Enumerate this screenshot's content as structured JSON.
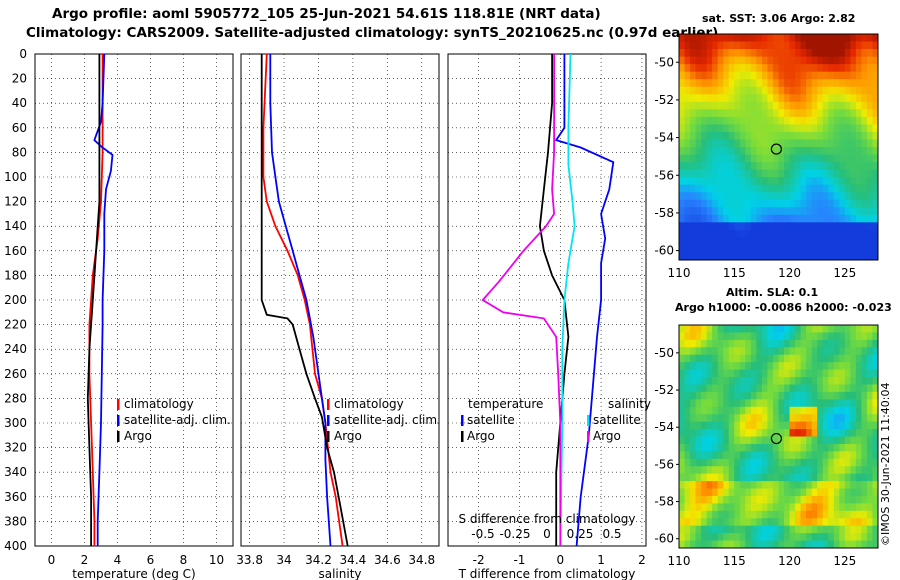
{
  "header": {
    "line1": "Argo profile: aoml 5905772_105 25-Jun-2021 54.61S 118.81E (NRT data)",
    "line2": "Climatology: CARS2009. Satellite-adjusted climatology: synTS_20210625.nc (0.97d earlier)"
  },
  "colors": {
    "climatology": "#ff0000",
    "satellite": "#0000ff",
    "argo": "#000000",
    "salinity_satellite": "#00e5ee",
    "salinity_argo": "#ee00ee"
  },
  "depth_axis": {
    "ylim": [
      0,
      400
    ],
    "ticks": [
      0,
      20,
      40,
      60,
      80,
      100,
      120,
      140,
      160,
      180,
      200,
      220,
      240,
      260,
      280,
      300,
      320,
      340,
      360,
      380,
      400
    ]
  },
  "chart_data": [
    {
      "type": "line",
      "name": "temperature",
      "xlabel": "temperature (deg C)",
      "xlim": [
        -1,
        11
      ],
      "xticks": [
        0,
        2,
        4,
        6,
        8,
        10
      ],
      "legend": [
        "climatology",
        "satellite-adj. clim.",
        "Argo"
      ],
      "series": [
        {
          "name": "climatology",
          "color": "#ff0000",
          "points": [
            [
              3.1,
              0
            ],
            [
              3.1,
              60
            ],
            [
              3.1,
              80
            ],
            [
              3.0,
              120
            ],
            [
              2.8,
              150
            ],
            [
              2.5,
              180
            ],
            [
              2.4,
              200
            ],
            [
              2.3,
              220
            ],
            [
              2.3,
              260
            ],
            [
              2.4,
              300
            ],
            [
              2.5,
              340
            ],
            [
              2.6,
              380
            ],
            [
              2.6,
              400
            ]
          ]
        },
        {
          "name": "satellite-adj. clim.",
          "color": "#0000ff",
          "points": [
            [
              3.2,
              0
            ],
            [
              3.1,
              40
            ],
            [
              3.0,
              55
            ],
            [
              2.6,
              70
            ],
            [
              3.0,
              75
            ],
            [
              3.7,
              82
            ],
            [
              3.6,
              95
            ],
            [
              3.3,
              110
            ],
            [
              3.2,
              130
            ],
            [
              3.2,
              160
            ],
            [
              3.1,
              200
            ],
            [
              3.1,
              220
            ],
            [
              3.0,
              300
            ],
            [
              2.9,
              340
            ],
            [
              2.8,
              380
            ],
            [
              2.8,
              400
            ]
          ]
        },
        {
          "name": "Argo",
          "color": "#000000",
          "points": [
            [
              2.9,
              0
            ],
            [
              2.9,
              40
            ],
            [
              2.9,
              80
            ],
            [
              2.9,
              120
            ],
            [
              2.7,
              160
            ],
            [
              2.5,
              200
            ],
            [
              2.3,
              240
            ],
            [
              2.2,
              280
            ],
            [
              2.3,
              320
            ],
            [
              2.4,
              360
            ],
            [
              2.4,
              400
            ]
          ]
        }
      ]
    },
    {
      "type": "line",
      "name": "salinity",
      "xlabel": "salinity",
      "xlim": [
        33.75,
        34.9
      ],
      "xticks": [
        33.8,
        34,
        34.2,
        34.4,
        34.6,
        34.8
      ],
      "legend": [
        "climatology",
        "satellite-adj. clim.",
        "Argo"
      ],
      "series": [
        {
          "name": "climatology",
          "color": "#ff0000",
          "points": [
            [
              33.9,
              0
            ],
            [
              33.88,
              60
            ],
            [
              33.88,
              100
            ],
            [
              33.9,
              120
            ],
            [
              33.95,
              140
            ],
            [
              34.02,
              160
            ],
            [
              34.08,
              180
            ],
            [
              34.12,
              200
            ],
            [
              34.15,
              220
            ],
            [
              34.18,
              260
            ],
            [
              34.22,
              280
            ],
            [
              34.24,
              300
            ],
            [
              34.27,
              340
            ],
            [
              34.3,
              360
            ],
            [
              34.34,
              400
            ]
          ]
        },
        {
          "name": "satellite-adj. clim.",
          "color": "#0000ff",
          "points": [
            [
              33.92,
              0
            ],
            [
              33.92,
              40
            ],
            [
              33.93,
              80
            ],
            [
              33.95,
              100
            ],
            [
              33.97,
              120
            ],
            [
              34.01,
              140
            ],
            [
              34.05,
              160
            ],
            [
              34.09,
              180
            ],
            [
              34.13,
              200
            ],
            [
              34.17,
              230
            ],
            [
              34.21,
              270
            ],
            [
              34.24,
              300
            ],
            [
              34.24,
              330
            ],
            [
              34.25,
              360
            ],
            [
              34.27,
              400
            ]
          ]
        },
        {
          "name": "Argo",
          "color": "#000000",
          "points": [
            [
              33.87,
              0
            ],
            [
              33.87,
              80
            ],
            [
              33.87,
              150
            ],
            [
              33.87,
              200
            ],
            [
              33.9,
              212
            ],
            [
              34.02,
              215
            ],
            [
              34.05,
              220
            ],
            [
              34.09,
              240
            ],
            [
              34.13,
              260
            ],
            [
              34.18,
              280
            ],
            [
              34.22,
              295
            ],
            [
              34.25,
              320
            ],
            [
              34.29,
              340
            ],
            [
              34.33,
              370
            ],
            [
              34.37,
              400
            ]
          ]
        }
      ]
    },
    {
      "type": "line",
      "name": "difference",
      "xlabel": "T difference from climatology",
      "xlim": [
        -2.75,
        2.1
      ],
      "xticks": [
        -2,
        -1,
        0,
        1,
        2
      ],
      "secondary_xlabel": "S difference from climatology",
      "secondary_xticks": [
        "-0.5",
        "-0.25",
        "0",
        "0.25",
        "0.5"
      ],
      "legend_temperature_title": "temperature",
      "legend_salinity_title": "salinity",
      "legend_temperature": [
        "satellite",
        "Argo"
      ],
      "legend_salinity": [
        "satellite",
        "Argo"
      ],
      "series": [
        {
          "name": "temperature satellite",
          "color": "#0000ff",
          "points": [
            [
              0.1,
              0
            ],
            [
              0.1,
              40
            ],
            [
              0.1,
              60
            ],
            [
              -0.1,
              70
            ],
            [
              0.5,
              76
            ],
            [
              1.3,
              88
            ],
            [
              1.2,
              110
            ],
            [
              1.0,
              130
            ],
            [
              1.1,
              150
            ],
            [
              1.0,
              170
            ],
            [
              1.0,
              200
            ],
            [
              0.9,
              230
            ],
            [
              0.8,
              270
            ],
            [
              0.7,
              310
            ],
            [
              0.5,
              360
            ],
            [
              0.4,
              400
            ]
          ]
        },
        {
          "name": "temperature Argo",
          "color": "#000000",
          "points": [
            [
              -0.2,
              0
            ],
            [
              -0.2,
              40
            ],
            [
              -0.3,
              80
            ],
            [
              -0.4,
              110
            ],
            [
              -0.5,
              140
            ],
            [
              -0.4,
              160
            ],
            [
              -0.2,
              180
            ],
            [
              0.1,
              200
            ],
            [
              0.2,
              230
            ],
            [
              0.1,
              260
            ],
            [
              0,
              300
            ],
            [
              -0.1,
              340
            ],
            [
              -0.1,
              400
            ]
          ]
        },
        {
          "name": "salinity satellite",
          "color": "#00e5ee",
          "points": [
            [
              0.25,
              0
            ],
            [
              0.2,
              60
            ],
            [
              0.2,
              90
            ],
            [
              0.3,
              120
            ],
            [
              0.35,
              140
            ],
            [
              0.2,
              170
            ],
            [
              0.1,
              200
            ],
            [
              0.05,
              240
            ],
            [
              0.05,
              300
            ],
            [
              0.02,
              360
            ],
            [
              0.0,
              400
            ]
          ]
        },
        {
          "name": "salinity Argo",
          "color": "#ee00ee",
          "points": [
            [
              -0.15,
              0
            ],
            [
              -0.15,
              40
            ],
            [
              -0.15,
              80
            ],
            [
              -0.2,
              110
            ],
            [
              -0.15,
              130
            ],
            [
              -0.35,
              140
            ],
            [
              -0.9,
              160
            ],
            [
              -1.5,
              185
            ],
            [
              -1.9,
              200
            ],
            [
              -1.4,
              210
            ],
            [
              -0.4,
              215
            ],
            [
              -0.1,
              230
            ],
            [
              -0.05,
              260
            ],
            [
              0,
              300
            ],
            [
              0,
              400
            ]
          ]
        }
      ]
    },
    {
      "type": "heatmap",
      "name": "sst-map",
      "title": "sat. SST: 3.06 Argo: 2.82",
      "xlim": [
        110,
        128
      ],
      "ylim": [
        -60.5,
        -48.5
      ],
      "xticks": [
        110,
        115,
        120,
        125
      ],
      "yticks": [
        -50,
        -52,
        -54,
        -56,
        -58,
        -60
      ],
      "profile_location": [
        118.81,
        -54.61
      ]
    },
    {
      "type": "heatmap",
      "name": "sla-map",
      "title_line1": "Altim. SLA: 0.1",
      "title_line2": "Argo h1000: -0.0086 h2000: -0.023",
      "xlim": [
        110,
        128
      ],
      "ylim": [
        -60.5,
        -48.5
      ],
      "xticks": [
        110,
        115,
        120,
        125
      ],
      "yticks": [
        -50,
        -52,
        -54,
        -56,
        -58,
        -60
      ],
      "profile_location": [
        118.81,
        -54.61
      ]
    }
  ],
  "footer": {
    "stamp": "©IMOS 30-Jun-2021 11:40:04"
  }
}
